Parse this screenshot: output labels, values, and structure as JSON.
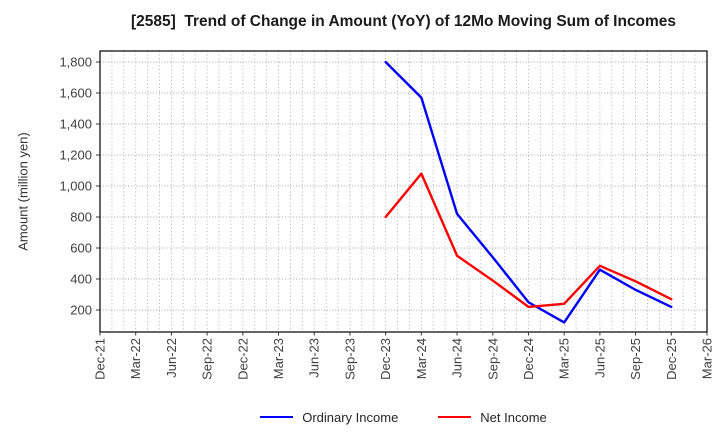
{
  "chart_data": {
    "type": "line",
    "title": "[2585]  Trend of Change in Amount (YoY) of 12Mo Moving Sum of Incomes",
    "xlabel": "",
    "ylabel": "Amount (million yen)",
    "x_labels": [
      "Dec-21",
      "Mar-22",
      "Jun-22",
      "Sep-22",
      "Dec-22",
      "Mar-23",
      "Jun-23",
      "Sep-23",
      "Dec-23",
      "Mar-24",
      "Jun-24",
      "Sep-24",
      "Dec-24",
      "Mar-25",
      "Jun-25",
      "Sep-25",
      "Dec-25",
      "Mar-26"
    ],
    "y_ticks": [
      200,
      400,
      600,
      800,
      1000,
      1200,
      1400,
      1600,
      1800
    ],
    "ylim": [
      60,
      1870
    ],
    "grid": true,
    "minor_x_grid": "monthly",
    "legend_position": "bottom-center",
    "series": [
      {
        "name": "Ordinary Income",
        "color": "#0000ff",
        "start_index": 8,
        "x": [
          "Dec-23",
          "Mar-24",
          "Jun-24",
          "Sep-24",
          "Dec-24",
          "Mar-25",
          "Jun-25",
          "Sep-25",
          "Dec-25"
        ],
        "values": [
          1800,
          1570,
          820,
          540,
          250,
          120,
          460,
          330,
          220
        ]
      },
      {
        "name": "Net Income",
        "color": "#ff0000",
        "start_index": 8,
        "x": [
          "Dec-23",
          "Mar-24",
          "Jun-24",
          "Sep-24",
          "Dec-24",
          "Mar-25",
          "Jun-25",
          "Sep-25",
          "Dec-25"
        ],
        "values": [
          800,
          1080,
          550,
          390,
          220,
          240,
          485,
          385,
          270
        ]
      }
    ],
    "colors": {
      "axis_border": "#000000",
      "grid": "#a8a8a8",
      "tick_text": "#404040",
      "title_text": "#1a1a1a"
    }
  }
}
